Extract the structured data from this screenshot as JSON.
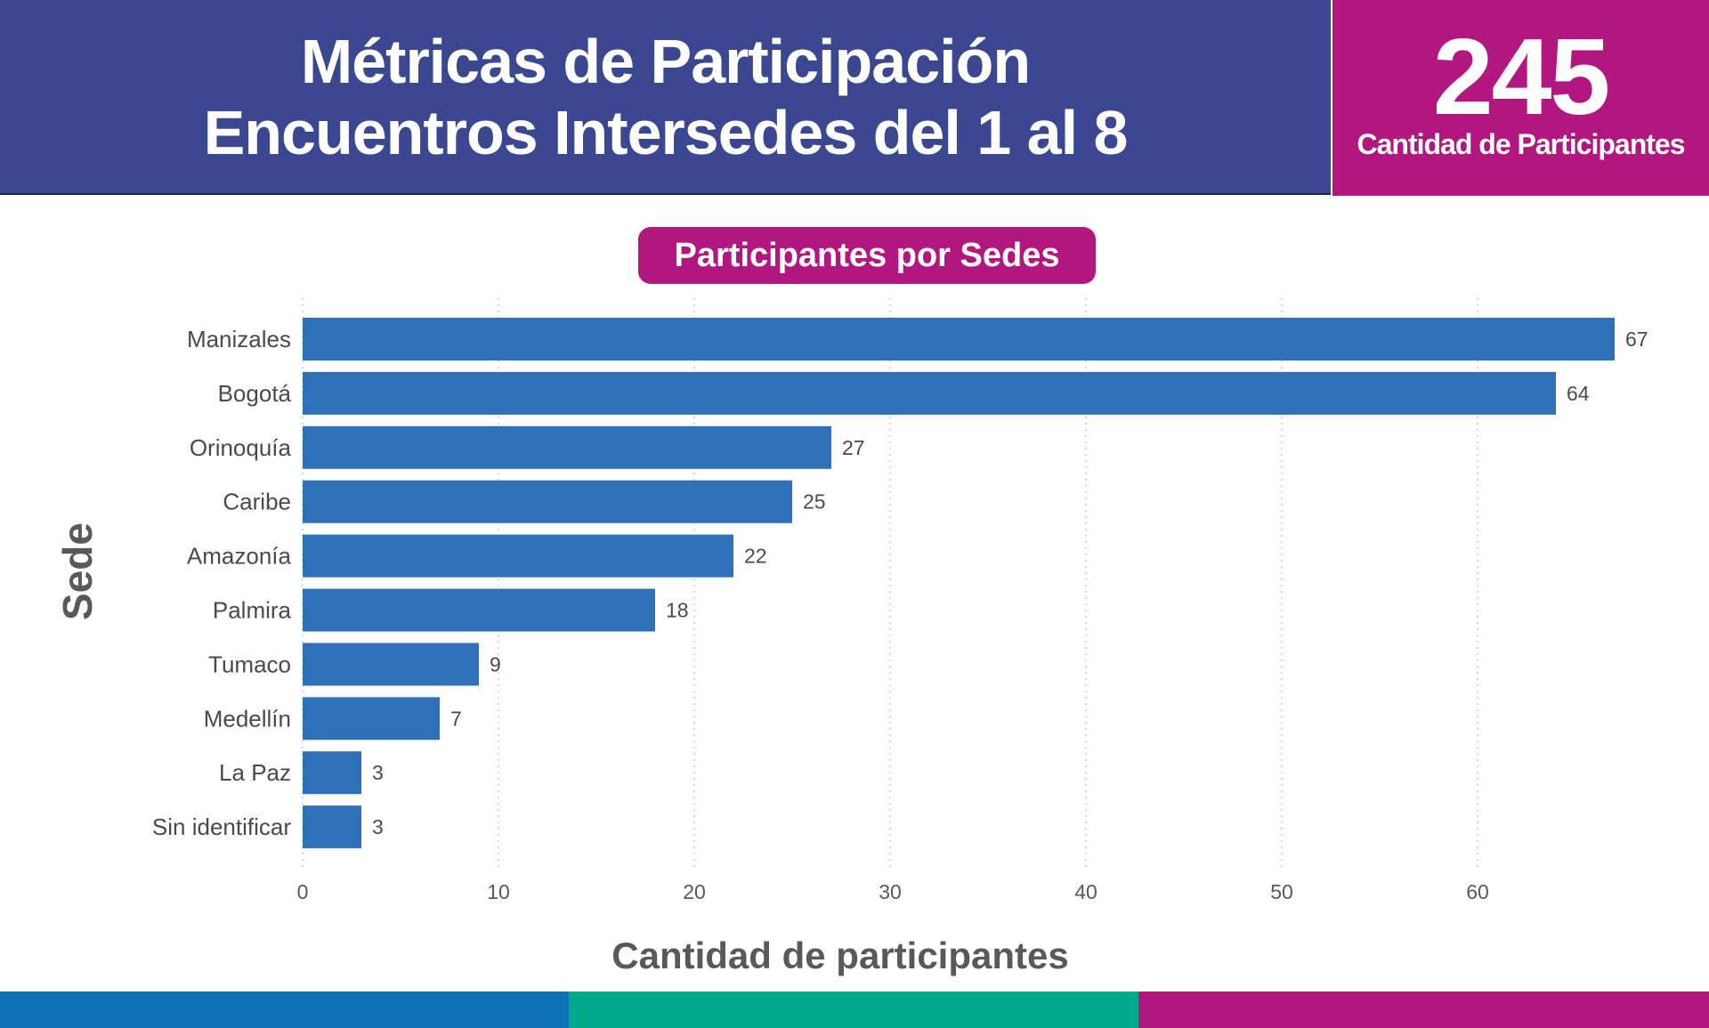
{
  "header": {
    "title_line1": "Métricas de Participación",
    "title_line2": "Encuentros Intersedes del 1 al 8",
    "total_value": "245",
    "total_label": "Cantidad de Participantes"
  },
  "colors": {
    "header_blue": "#3b4891",
    "accent_magenta": "#b2177f",
    "bar_blue": "#2e71b8",
    "stripe_blue": "#0b72b3",
    "stripe_green": "#00a98a",
    "stripe_magenta": "#b2177f"
  },
  "chart_data": {
    "type": "bar",
    "orientation": "horizontal",
    "title": "Participantes por Sedes",
    "xlabel": "Cantidad de participantes",
    "ylabel": "Sede",
    "categories": [
      "Manizales",
      "Bogotá",
      "Orinoquía",
      "Caribe",
      "Amazonía",
      "Palmira",
      "Tumaco",
      "Medellín",
      "La Paz",
      "Sin identificar"
    ],
    "values": [
      67,
      64,
      27,
      25,
      22,
      18,
      9,
      7,
      3,
      3
    ],
    "x_ticks": [
      0,
      10,
      20,
      30,
      40,
      50,
      60
    ],
    "xlim": [
      0,
      70
    ],
    "grid": "vertical-dotted",
    "data_labels": true
  }
}
